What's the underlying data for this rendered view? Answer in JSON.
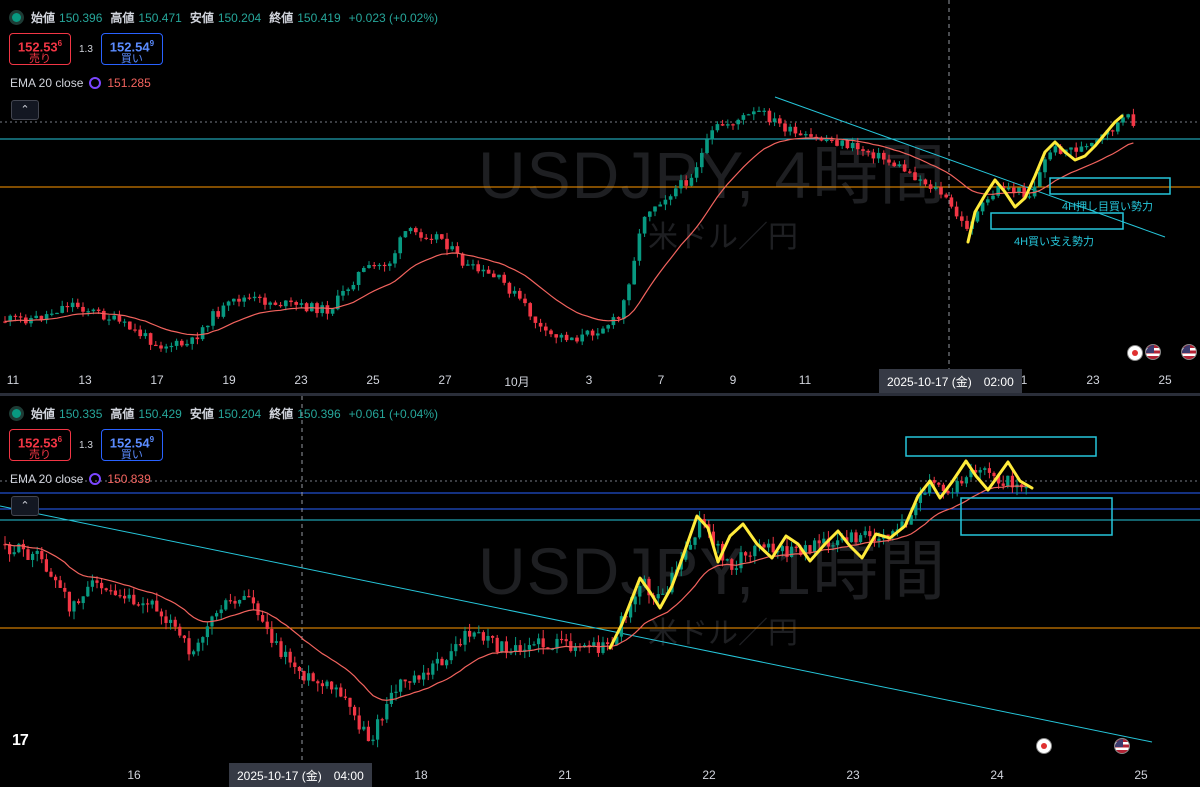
{
  "pane1": {
    "ohlc": {
      "open_label": "始値",
      "open": "150.396",
      "high_label": "高値",
      "high": "150.471",
      "low_label": "安値",
      "low": "150.204",
      "close_label": "終値",
      "close": "150.419",
      "change": "+0.023 (+0.02%)"
    },
    "sell": {
      "price": "152.53",
      "sup": "6",
      "label": "売り"
    },
    "buy": {
      "price": "152.54",
      "sup": "9",
      "label": "買い"
    },
    "spread": "1.3",
    "ema": {
      "name": "EMA 20 close",
      "value": "151.285"
    },
    "watermark": "USDJPY, 4時間",
    "watermark_sub": "米ドル／円",
    "crosshair_label": "2025-10-17 (金)　02:00",
    "annotations": [
      "4H押し目買い勢力",
      "4H買い支え勢力"
    ],
    "x_labels": [
      "11",
      "13",
      "17",
      "19",
      "23",
      "25",
      "27",
      "10月",
      "3",
      "7",
      "9",
      "11",
      "1",
      "23",
      "25"
    ]
  },
  "pane2": {
    "ohlc": {
      "open_label": "始値",
      "open": "150.335",
      "high_label": "高値",
      "high": "150.429",
      "low_label": "安値",
      "low": "150.204",
      "close_label": "終値",
      "close": "150.396",
      "change": "+0.061 (+0.04%)"
    },
    "sell": {
      "price": "152.53",
      "sup": "6",
      "label": "売り"
    },
    "buy": {
      "price": "152.54",
      "sup": "9",
      "label": "買い"
    },
    "spread": "1.3",
    "ema": {
      "name": "EMA 20 close",
      "value": "150.839"
    },
    "watermark": "USDJPY, 1時間",
    "watermark_sub": "米ドル／円",
    "crosshair_label": "2025-10-17 (金)　04:00",
    "x_labels": [
      "16",
      "18",
      "21",
      "22",
      "23",
      "24",
      "25"
    ],
    "logo": "17"
  },
  "colors": {
    "up": "#089981",
    "down": "#f23645",
    "ema": "#f2635e",
    "trend": "#26c6da",
    "support": "#ff9800",
    "hline": "#2962ff",
    "highlight": "#ffeb3b"
  },
  "icons": {
    "collapse": "chevron-up-icon",
    "event_jp": "japan-flag-icon",
    "event_us": "us-flag-icon"
  },
  "chart_data": [
    {
      "type": "candlestick",
      "timeframe": "4H",
      "symbol": "USDJPY",
      "x_ticks": [
        "11",
        "13",
        "17",
        "19",
        "23",
        "25",
        "27",
        "10月",
        "3",
        "7",
        "9",
        "11",
        "1",
        "23",
        "25"
      ],
      "last": {
        "open": 150.396,
        "high": 150.471,
        "low": 150.204,
        "close": 150.419
      },
      "ema20": 151.285
    },
    {
      "type": "candlestick",
      "timeframe": "1H",
      "symbol": "USDJPY",
      "x_ticks": [
        "16",
        "18",
        "21",
        "22",
        "23",
        "24",
        "25"
      ],
      "last": {
        "open": 150.335,
        "high": 150.429,
        "low": 150.204,
        "close": 150.396
      },
      "ema20": 150.839
    }
  ]
}
